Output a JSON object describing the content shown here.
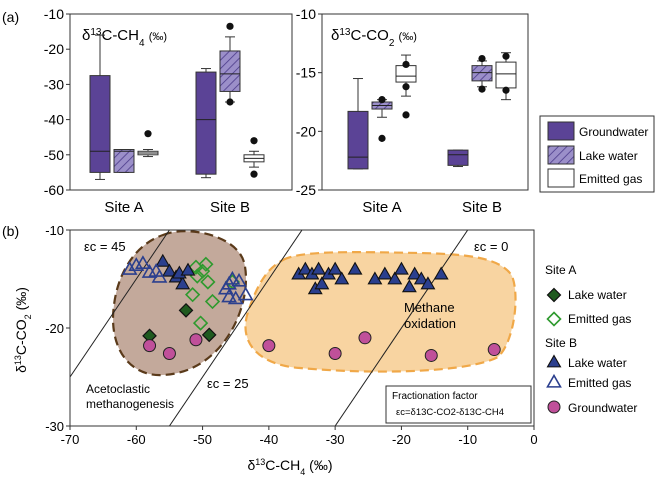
{
  "panel_a": {
    "letter": "(a)",
    "sites": [
      "Site A",
      "Site B"
    ],
    "legend": [
      {
        "key": "groundwater",
        "label": "Groundwater"
      },
      {
        "key": "lake",
        "label": "Lake water"
      },
      {
        "key": "gas",
        "label": "Emitted gas"
      }
    ]
  },
  "panel_b": {
    "letter": "(b)",
    "legend": {
      "site_a_title": "Site A",
      "site_a_lake": "Lake water",
      "site_a_gas": "Emitted gas",
      "site_b_title": "Site B",
      "site_b_lake": "Lake water",
      "site_b_gas": "Emitted gas",
      "groundwater": "Groundwater"
    },
    "zones": {
      "aceto_line1": "Acetoclastic",
      "aceto_line2": "methanogenesis",
      "ox_line1": "Methane",
      "ox_line2": "oxidation"
    },
    "fraction_box": {
      "title": "Fractionation factor",
      "formula": "εc=δ13C-CO2-δ13C-CH4"
    },
    "eps_labels": [
      {
        "text": "εc = 45",
        "eps": 45
      },
      {
        "text": "εc = 25",
        "eps": 25
      },
      {
        "text": "εc = 0",
        "eps": 0
      }
    ]
  },
  "colors": {
    "groundwater": "#5b4396",
    "lake_fill": "#9b8fc9",
    "lake_hatch": "#4a3a8a",
    "site_a_marker": "#1f5a1f",
    "site_a_open": "#2e9a2e",
    "site_b_marker": "#2b3f8e",
    "gw_marker": "#c0509a",
    "aceto_zone": "#b89a8a",
    "ox_zone": "#f6c98a"
  },
  "chart_data": [
    {
      "type": "box",
      "title": "δ13C-CH4 (‰)",
      "xlabel": "",
      "ylabel": "",
      "ylim": [
        -60,
        -10
      ],
      "yticks": [
        -60,
        -50,
        -40,
        -30,
        -20,
        -10
      ],
      "categories": [
        "Site A",
        "Site B"
      ],
      "boxes": [
        {
          "site": "Site A",
          "group": "groundwater",
          "whisker_low": -57,
          "q1": -55,
          "median": -49,
          "q3": -27.5,
          "whisker_high": -16,
          "outliers": []
        },
        {
          "site": "Site A",
          "group": "lake",
          "whisker_low": -55,
          "q1": -55,
          "median": -49,
          "q3": -48.5,
          "whisker_high": -48.5,
          "outliers": []
        },
        {
          "site": "Site A",
          "group": "gas",
          "whisker_low": -50.5,
          "q1": -50,
          "median": -49.5,
          "q3": -49,
          "whisker_high": -48.5,
          "outliers": [
            -44
          ]
        },
        {
          "site": "Site B",
          "group": "groundwater",
          "whisker_low": -56.5,
          "q1": -55.5,
          "median": -40,
          "q3": -26.5,
          "whisker_high": -25.5,
          "outliers": []
        },
        {
          "site": "Site B",
          "group": "lake",
          "whisker_low": -35,
          "q1": -32,
          "median": -27,
          "q3": -20.5,
          "whisker_high": -16.5,
          "outliers": [
            -13.5,
            -35
          ]
        },
        {
          "site": "Site B",
          "group": "gas",
          "whisker_low": -53.5,
          "q1": -52,
          "median": -51,
          "q3": -50,
          "whisker_high": -49,
          "outliers": [
            -46,
            -55.5
          ]
        }
      ]
    },
    {
      "type": "box",
      "title": "δ13C-CO2 (‰)",
      "xlabel": "",
      "ylabel": "",
      "ylim": [
        -25,
        -10
      ],
      "yticks": [
        -25,
        -20,
        -15,
        -10
      ],
      "categories": [
        "Site A",
        "Site B"
      ],
      "boxes": [
        {
          "site": "Site A",
          "group": "groundwater",
          "whisker_low": -23.2,
          "q1": -23.2,
          "median": -22.2,
          "q3": -18.3,
          "whisker_high": -15.5,
          "outliers": []
        },
        {
          "site": "Site A",
          "group": "lake",
          "whisker_low": -18.8,
          "q1": -18.1,
          "median": -17.8,
          "q3": -17.5,
          "whisker_high": -17.3,
          "outliers": [
            -17.3,
            -20.6
          ]
        },
        {
          "site": "Site A",
          "group": "gas",
          "whisker_low": -17,
          "q1": -15.8,
          "median": -15.3,
          "q3": -14.4,
          "whisker_high": -13.5,
          "outliers": [
            -16.2,
            -18.6,
            -14.3
          ]
        },
        {
          "site": "Site B",
          "group": "groundwater",
          "whisker_low": -23,
          "q1": -22.9,
          "median": -22,
          "q3": -21.6,
          "whisker_high": -21.6,
          "outliers": []
        },
        {
          "site": "Site B",
          "group": "lake",
          "whisker_low": -16.2,
          "q1": -15.7,
          "median": -15,
          "q3": -14.4,
          "whisker_high": -14,
          "outliers": [
            -13.8,
            -16.4
          ]
        },
        {
          "site": "Site B",
          "group": "gas",
          "whisker_low": -17.3,
          "q1": -16.3,
          "median": -15.1,
          "q3": -14.1,
          "whisker_high": -13.3,
          "outliers": [
            -13.6,
            -16.5
          ]
        }
      ]
    },
    {
      "type": "scatter",
      "title": "",
      "xlabel": "δ13C-CH4 (‰)",
      "ylabel": "δ13C-CO2 (‰)",
      "xlim": [
        -70,
        0
      ],
      "ylim": [
        -30,
        -10
      ],
      "xticks": [
        -70,
        -60,
        -50,
        -40,
        -30,
        -20,
        -10,
        0
      ],
      "yticks": [
        -30,
        -20,
        -10
      ],
      "lines": [
        {
          "label": "εc = 45",
          "eps": 45
        },
        {
          "label": "εc = 25",
          "eps": 25
        },
        {
          "label": "εc = 0",
          "eps": 0
        }
      ],
      "series": [
        {
          "name": "Site A Lake water",
          "marker": "diamond-filled",
          "points": [
            [
              -58,
              -20.8
            ],
            [
              -52.5,
              -18.2
            ],
            [
              -49,
              -20.7
            ]
          ]
        },
        {
          "name": "Site A Emitted gas",
          "marker": "diamond-open",
          "points": [
            [
              -51,
              -13.8
            ],
            [
              -50,
              -14.2
            ],
            [
              -49.5,
              -13.5
            ],
            [
              -50.8,
              -14.7
            ],
            [
              -49.2,
              -15.3
            ],
            [
              -48.5,
              -17.3
            ],
            [
              -51.5,
              -16.6
            ],
            [
              -45.5,
              -15.3
            ],
            [
              -50.3,
              -19.5
            ]
          ]
        },
        {
          "name": "Site B Lake water",
          "marker": "triangle-filled",
          "points": [
            [
              -56,
              -13.2
            ],
            [
              -55,
              -14.2
            ],
            [
              -54,
              -14.8
            ],
            [
              -53,
              -15.5
            ],
            [
              -53.5,
              -14.4
            ],
            [
              -52.2,
              -14.1
            ],
            [
              -35.5,
              -14.5
            ],
            [
              -34.5,
              -14.0
            ],
            [
              -33.5,
              -14.5
            ],
            [
              -32.5,
              -14.0
            ],
            [
              -33,
              -16.0
            ],
            [
              -32,
              -15.5
            ],
            [
              -31,
              -14.5
            ],
            [
              -30,
              -14.0
            ],
            [
              -29,
              -15.0
            ],
            [
              -27,
              -14.0
            ],
            [
              -24,
              -15.0
            ],
            [
              -22.5,
              -14.5
            ],
            [
              -21,
              -15.0
            ],
            [
              -20,
              -14.0
            ],
            [
              -18,
              -14.5
            ],
            [
              -17,
              -15.0
            ],
            [
              -16,
              -15.5
            ],
            [
              -14,
              -14.5
            ],
            [
              -18.8,
              -15.8
            ]
          ]
        },
        {
          "name": "Site B Emitted gas",
          "marker": "triangle-open",
          "points": [
            [
              -61,
              -14.0
            ],
            [
              -60,
              -13.6
            ],
            [
              -59,
              -13.4
            ],
            [
              -57,
              -14.2
            ],
            [
              -56.5,
              -14.8
            ],
            [
              -58,
              -14.3
            ],
            [
              -46.5,
              -16.0
            ],
            [
              -46,
              -15.5
            ],
            [
              -45.5,
              -15.0
            ],
            [
              -44.5,
              -15.2
            ],
            [
              -46,
              -16.8
            ],
            [
              -45,
              -17.0
            ],
            [
              -43.5,
              -16.6
            ]
          ]
        },
        {
          "name": "Groundwater",
          "marker": "circle-filled",
          "points": [
            [
              -58,
              -21.8
            ],
            [
              -55,
              -22.6
            ],
            [
              -51,
              -21.2
            ],
            [
              -40,
              -21.8
            ],
            [
              -30,
              -22.6
            ],
            [
              -25.5,
              -21.0
            ],
            [
              -15.5,
              -22.8
            ],
            [
              -6,
              -22.2
            ]
          ]
        }
      ]
    }
  ]
}
